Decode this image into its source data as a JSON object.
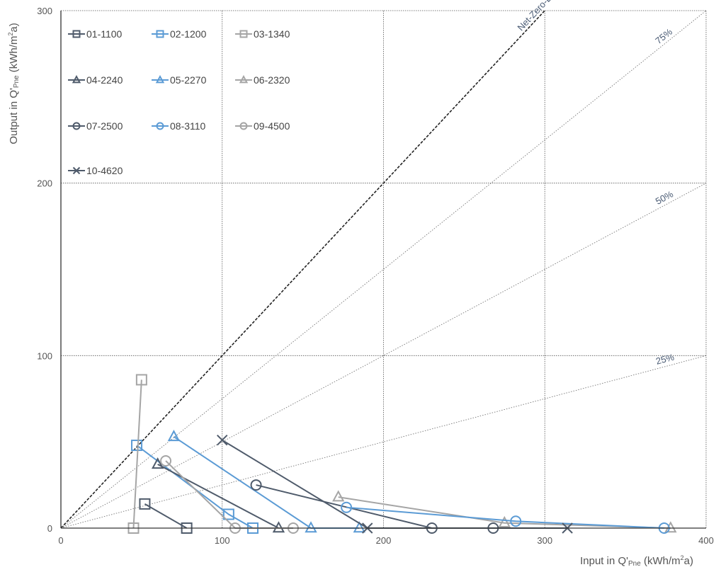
{
  "chart_data": {
    "type": "scatter",
    "title": "",
    "xlabel": "Input in Q'Pne (kWh/m2a)",
    "ylabel": "Output in Q'Pne (kWh/m2a)",
    "xlabel_parts": [
      "Input in Q'",
      "Pne",
      " (kWh/m",
      "2",
      "a)"
    ],
    "ylabel_parts": [
      "Output in Q'",
      "Pne",
      " (kWh/m",
      "2",
      "a)"
    ],
    "xlim": [
      0,
      400
    ],
    "ylim": [
      0,
      300
    ],
    "x_ticks": [
      0,
      100,
      200,
      300,
      400
    ],
    "y_ticks": [
      0,
      100,
      200,
      300
    ],
    "grid": true,
    "legend_position": "top-left",
    "reference_lines": [
      {
        "label": "Net-Zero-Energy",
        "ratio": 1.0,
        "style": "dashed",
        "color": "#222222"
      },
      {
        "label": "75%",
        "ratio": 0.75,
        "style": "dotted",
        "color": "#777777"
      },
      {
        "label": "50%",
        "ratio": 0.5,
        "style": "dotted",
        "color": "#777777"
      },
      {
        "label": "25%",
        "ratio": 0.25,
        "style": "dotted",
        "color": "#777777"
      }
    ],
    "series": [
      {
        "name": "01-1100",
        "marker": "square",
        "color": "#4f5b6b",
        "points": [
          [
            52,
            14
          ],
          [
            78,
            0
          ]
        ]
      },
      {
        "name": "02-1200",
        "marker": "square",
        "color": "#5b9bd5",
        "points": [
          [
            47,
            48
          ],
          [
            104,
            8
          ],
          [
            119,
            0
          ]
        ]
      },
      {
        "name": "03-1340",
        "marker": "square",
        "color": "#a5a5a5",
        "points": [
          [
            50,
            86
          ],
          [
            45,
            0
          ]
        ]
      },
      {
        "name": "04-2240",
        "marker": "triangle",
        "color": "#4f5b6b",
        "points": [
          [
            60,
            37
          ],
          [
            135,
            0
          ]
        ]
      },
      {
        "name": "05-2270",
        "marker": "triangle",
        "color": "#5b9bd5",
        "points": [
          [
            70,
            53
          ],
          [
            155,
            0
          ],
          [
            185,
            0
          ]
        ]
      },
      {
        "name": "06-2320",
        "marker": "triangle",
        "color": "#a5a5a5",
        "points": [
          [
            172,
            18
          ],
          [
            275,
            3
          ],
          [
            378,
            0
          ]
        ]
      },
      {
        "name": "07-2500",
        "marker": "circle",
        "color": "#4f5b6b",
        "points": [
          [
            121,
            25
          ],
          [
            230,
            0
          ],
          [
            268,
            0
          ]
        ]
      },
      {
        "name": "08-3110",
        "marker": "circle",
        "color": "#5b9bd5",
        "points": [
          [
            177,
            12
          ],
          [
            282,
            4
          ],
          [
            374,
            0
          ]
        ]
      },
      {
        "name": "09-4500",
        "marker": "circle",
        "color": "#a5a5a5",
        "points": [
          [
            65,
            39
          ],
          [
            108,
            0
          ],
          [
            144,
            0
          ]
        ]
      },
      {
        "name": "10-4620",
        "marker": "x",
        "color": "#4f5b6b",
        "points": [
          [
            100,
            51
          ],
          [
            190,
            0
          ],
          [
            314,
            0
          ]
        ]
      }
    ]
  }
}
